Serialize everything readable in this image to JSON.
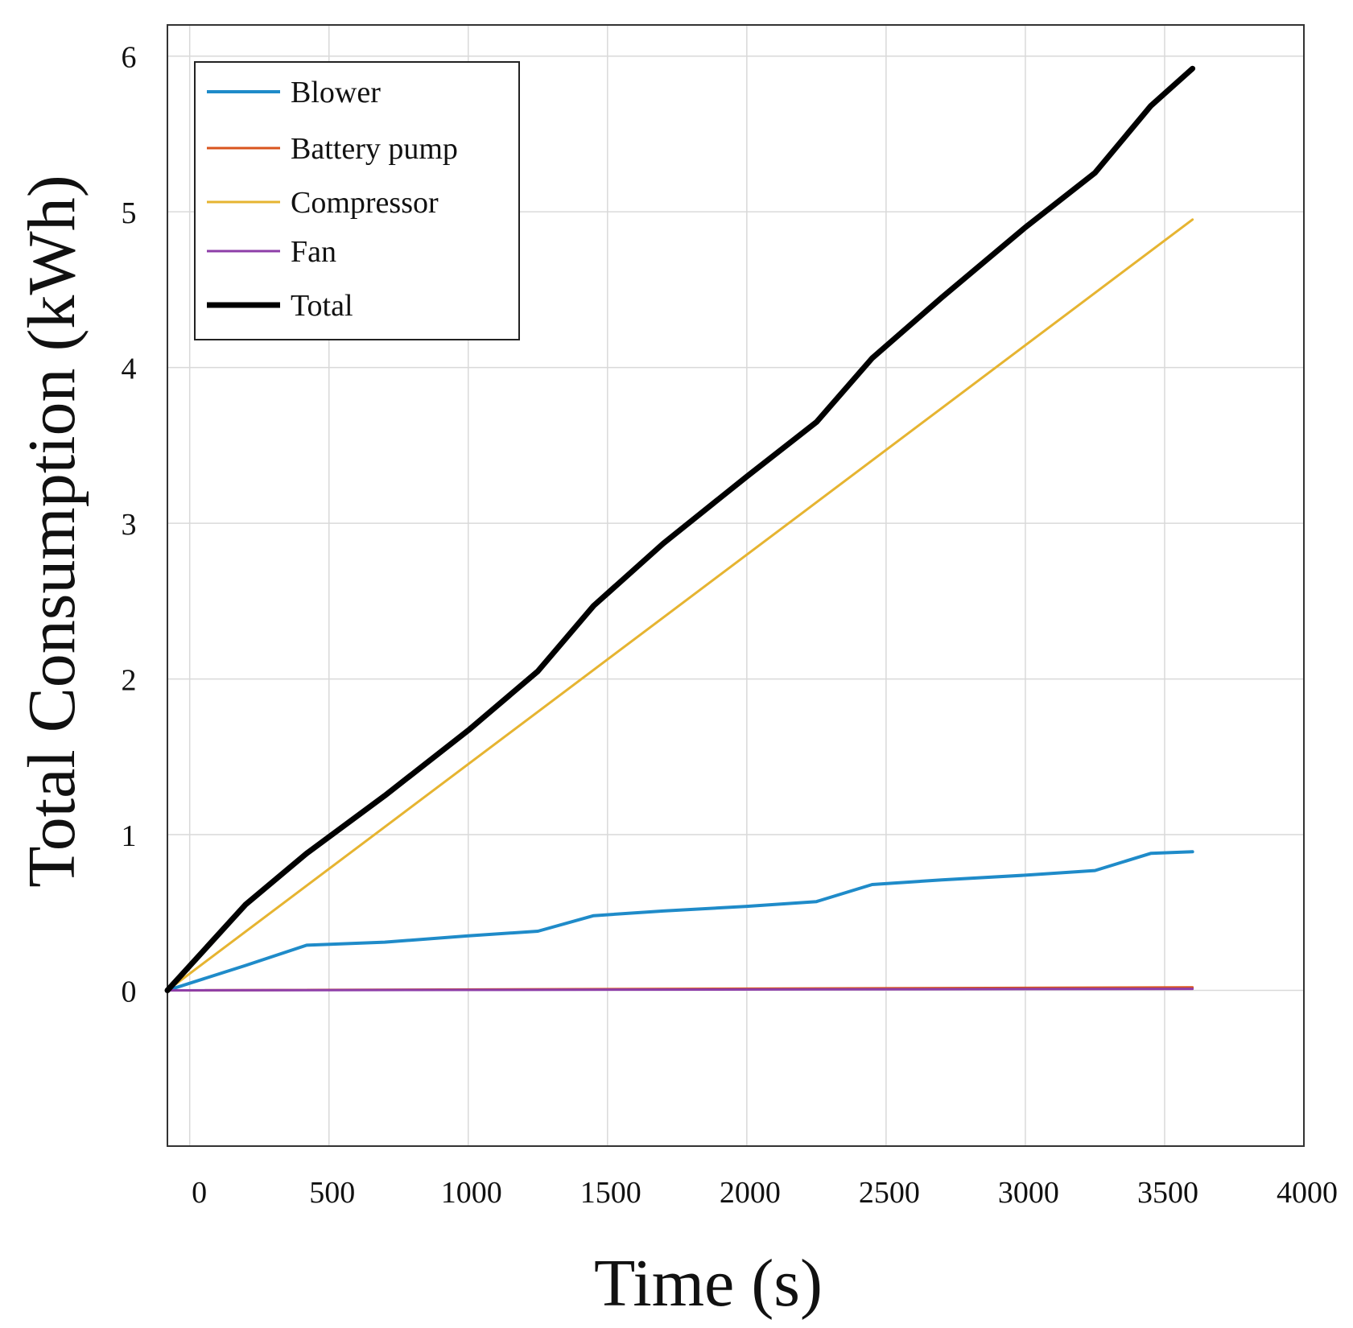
{
  "chart_data": {
    "type": "line",
    "title": "",
    "xlabel": "Time (s)",
    "ylabel": "Total Consumption (kWh)",
    "xlim": [
      -80,
      4000
    ],
    "ylim": [
      -1,
      6.2
    ],
    "xticks": [
      0,
      500,
      1000,
      1500,
      2000,
      2500,
      3000,
      3500,
      4000
    ],
    "yticks": [
      0,
      1,
      2,
      3,
      4,
      5,
      6
    ],
    "xtick_labels": [
      "0",
      "500",
      "1000",
      "1500",
      "2000",
      "2500",
      "3000",
      "3500",
      "4000"
    ],
    "ytick_labels": [
      "0",
      "1",
      "2",
      "3",
      "4",
      "5",
      "6"
    ],
    "grid": true,
    "legend_position": "top-left",
    "series": [
      {
        "name": "Blower",
        "color": "#1f8bc9",
        "width": 4,
        "x": [
          -80,
          200,
          420,
          700,
          1000,
          1250,
          1450,
          1700,
          2000,
          2250,
          2450,
          2700,
          3000,
          3250,
          3450,
          3600
        ],
        "y": [
          0.0,
          0.16,
          0.29,
          0.31,
          0.35,
          0.38,
          0.48,
          0.51,
          0.54,
          0.57,
          0.68,
          0.71,
          0.74,
          0.77,
          0.88,
          0.89
        ]
      },
      {
        "name": "Battery pump",
        "color": "#d9541e",
        "width": 3,
        "x": [
          -80,
          3600
        ],
        "y": [
          0.0,
          0.02
        ]
      },
      {
        "name": "Compressor",
        "color": "#e6b431",
        "width": 3,
        "x": [
          -80,
          3600
        ],
        "y": [
          0.0,
          4.95
        ]
      },
      {
        "name": "Fan",
        "color": "#8e3ea8",
        "width": 3,
        "x": [
          -80,
          3600
        ],
        "y": [
          0.0,
          0.01
        ]
      },
      {
        "name": "Total",
        "color": "#000000",
        "width": 7,
        "x": [
          -80,
          200,
          420,
          700,
          1000,
          1250,
          1450,
          1700,
          2000,
          2250,
          2450,
          2700,
          3000,
          3250,
          3450,
          3600
        ],
        "y": [
          0.0,
          0.55,
          0.88,
          1.25,
          1.67,
          2.05,
          2.47,
          2.87,
          3.3,
          3.65,
          4.06,
          4.45,
          4.9,
          5.25,
          5.68,
          5.92
        ]
      }
    ]
  }
}
